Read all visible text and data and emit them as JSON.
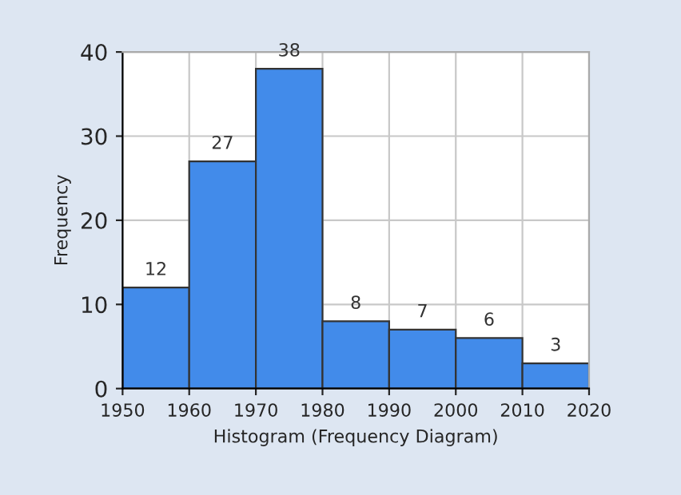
{
  "chart_data": {
    "type": "histogram",
    "xlabel": "Histogram (Frequency Diagram)",
    "ylabel": "Frequency",
    "bins": [
      1950,
      1960,
      1970,
      1980,
      1990,
      2000,
      2010,
      2020
    ],
    "values": [
      12,
      27,
      38,
      8,
      7,
      6,
      3
    ],
    "color": "#428bea",
    "xlim": [
      1950,
      2020
    ],
    "xticks": [
      1950,
      1960,
      1970,
      1980,
      1990,
      2000,
      2010,
      2020
    ],
    "ylim": [
      0,
      40
    ],
    "yticks": [
      0,
      10,
      20,
      30,
      40
    ],
    "grid": true,
    "data_labels": true
  }
}
